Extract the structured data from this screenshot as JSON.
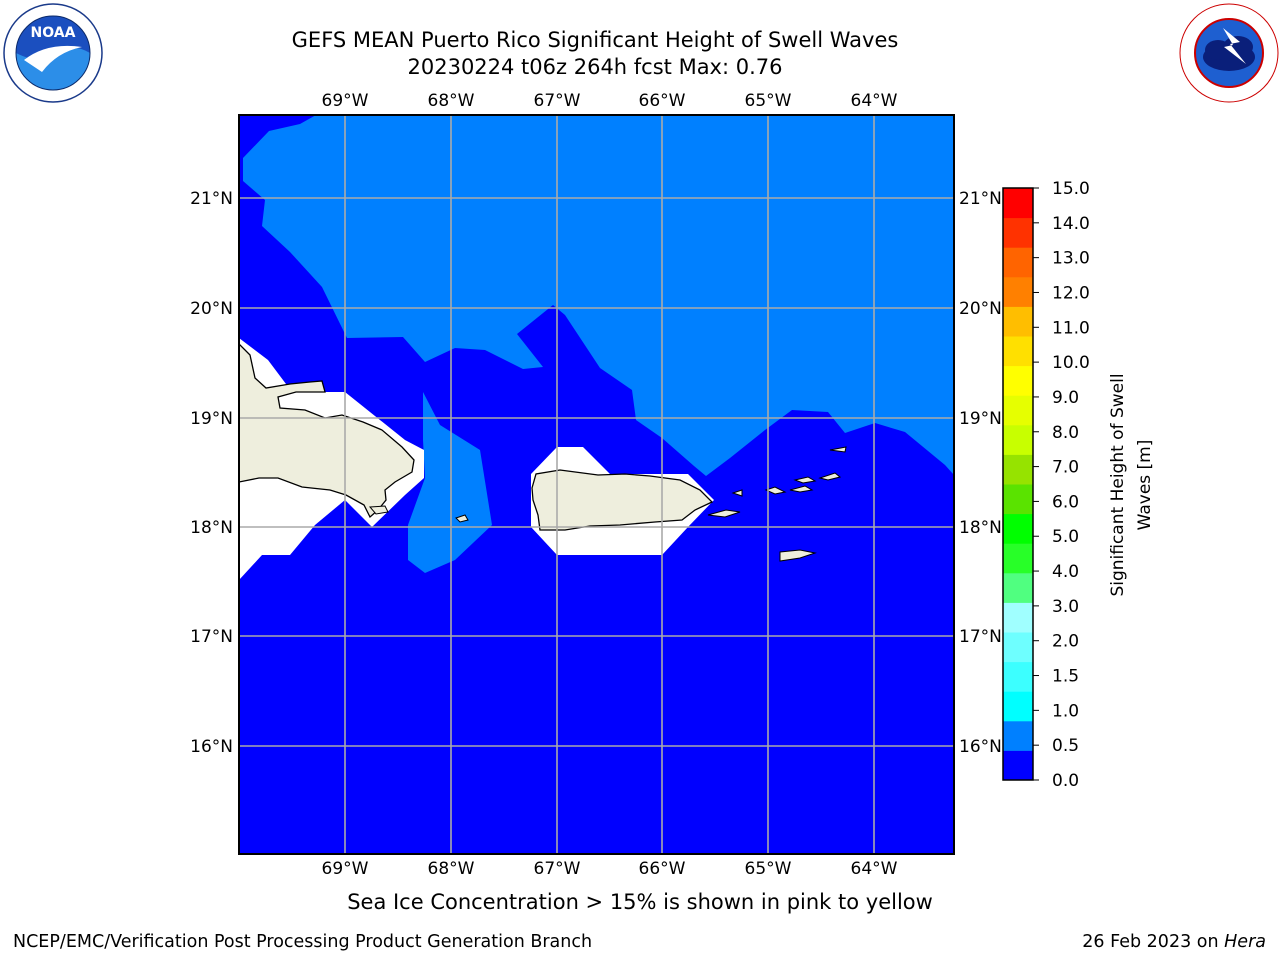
{
  "header": {
    "title_line1": "GEFS MEAN Puerto Rico Significant Height of Swell Waves",
    "title_line2": "20230224 t06z 264h fcst   Max: 0.76"
  },
  "logos": {
    "left": {
      "icon": "noaa-logo",
      "text": "NOAA",
      "ring_text": "NATIONAL OCEANIC AND ATMOSPHERIC ADMINISTRATION · U.S. DEPARTMENT OF COMMERCE"
    },
    "right": {
      "icon": "national-weather-service-logo",
      "ring_text": "NATIONAL WEATHER SERVICE"
    }
  },
  "map": {
    "lon_labels": [
      "69°W",
      "68°W",
      "67°W",
      "66°W",
      "65°W",
      "64°W"
    ],
    "lat_labels": [
      "21°N",
      "20°N",
      "19°N",
      "18°N",
      "17°N",
      "16°N"
    ],
    "colors": {
      "ocean_low": "#0000ff",
      "ocean_mid": "#0080ff",
      "land": "#eeeedd",
      "masked": "#ffffff",
      "grid": "#aaaaaa",
      "coast": "#000000"
    }
  },
  "colorbar": {
    "label_line1": "Significant Height of Swell",
    "label_line2": "Waves [m]",
    "ticks": [
      "0.0",
      "0.5",
      "1.0",
      "1.5",
      "2.0",
      "3.0",
      "4.0",
      "5.0",
      "6.0",
      "7.0",
      "8.0",
      "9.0",
      "10.0",
      "11.0",
      "12.0",
      "13.0",
      "14.0",
      "15.0"
    ],
    "colors": [
      "#0000ff",
      "#0080ff",
      "#00ffff",
      "#3cffff",
      "#6effff",
      "#a0ffff",
      "#50ff80",
      "#28ff28",
      "#00ff00",
      "#5ae300",
      "#96e300",
      "#c8ff00",
      "#e6ff00",
      "#ffff00",
      "#ffe000",
      "#ffbe00",
      "#ff8000",
      "#ff6400",
      "#ff3200",
      "#ff0000"
    ]
  },
  "notes": {
    "ice_note": "Sea Ice Concentration > 15% is shown in pink to yellow",
    "footer_left": "NCEP/EMC/Verification Post Processing Product Generation Branch",
    "footer_date": "26 Feb 2023 on ",
    "footer_machine": "Hera"
  }
}
